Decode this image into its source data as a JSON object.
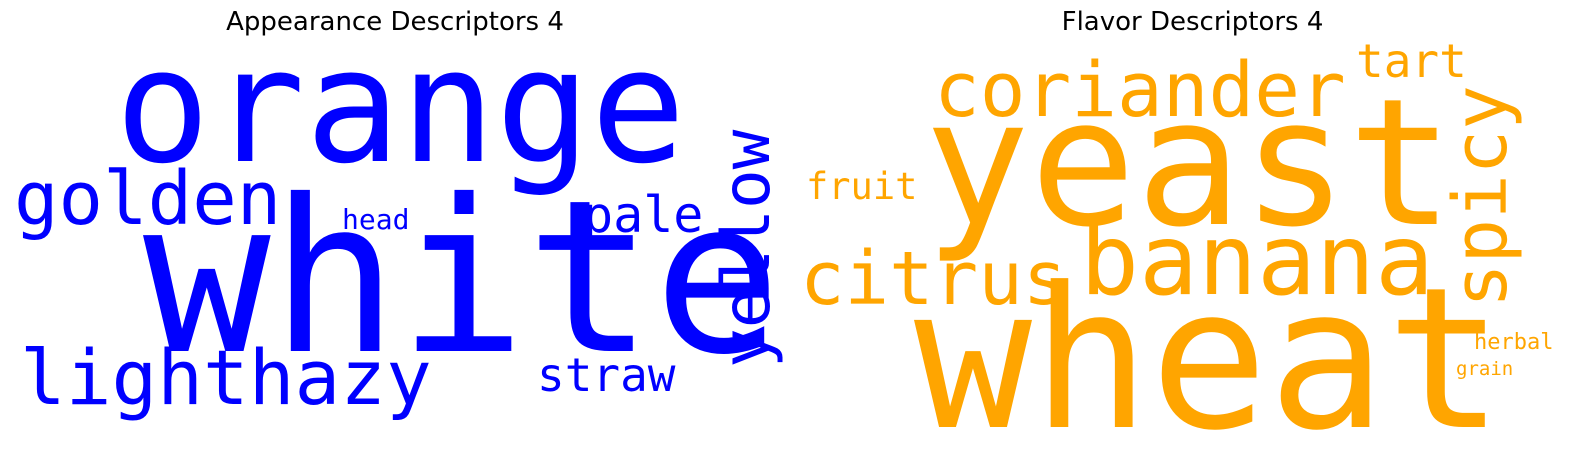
{
  "colors": {
    "appearance": "#0000ff",
    "flavor": "#ffa500",
    "background": "#ffffff"
  },
  "appearance": {
    "title": "Appearance Descriptors 4",
    "words": {
      "orange": "orange",
      "white": "white",
      "golden": "golden",
      "pale": "pale",
      "yellow": "yellow",
      "head": "head",
      "lighthazy": "lighthazy",
      "straw": "straw"
    }
  },
  "flavor": {
    "title": "Flavor Descriptors 4",
    "words": {
      "coriander": "coriander",
      "tart": "tart",
      "yeast": "yeast",
      "spicy": "spicy",
      "fruit": "fruit",
      "citrus": "citrus",
      "banana": "banana",
      "wheat": "wheat",
      "herbal": "herbal",
      "grain": "grain"
    }
  }
}
